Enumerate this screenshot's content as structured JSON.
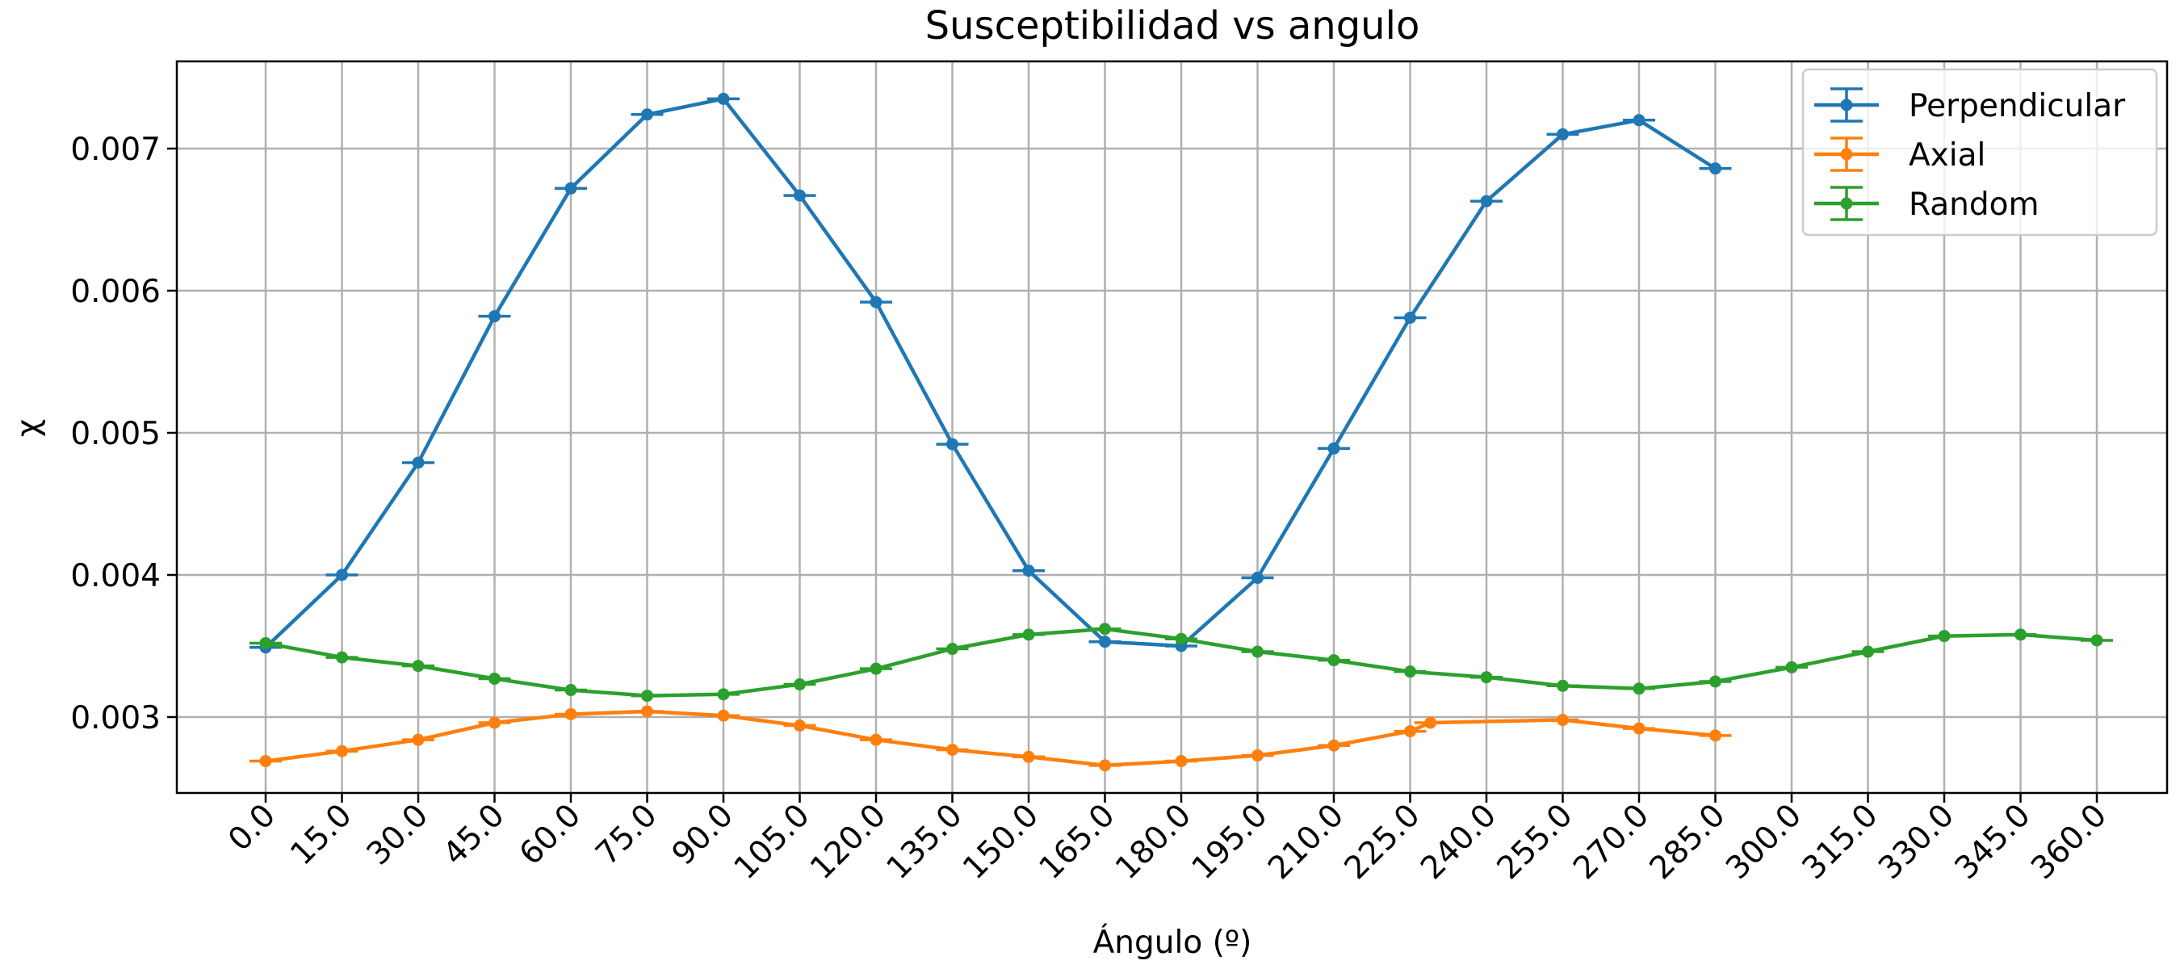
{
  "chart_data": {
    "type": "line",
    "title": "Susceptibilidad vs angulo",
    "xlabel": "Ángulo (º)",
    "ylabel": "χ",
    "x_tick_labels": [
      "0.0",
      "15.0",
      "30.0",
      "45.0",
      "60.0",
      "75.0",
      "90.0",
      "105.0",
      "120.0",
      "135.0",
      "150.0",
      "165.0",
      "180.0",
      "195.0",
      "210.0",
      "225.0",
      "240.0",
      "255.0",
      "270.0",
      "285.0",
      "300.0",
      "315.0",
      "330.0",
      "345.0",
      "360.0"
    ],
    "y_ticks": [
      0.003,
      0.004,
      0.005,
      0.006,
      0.007
    ],
    "y_tick_labels": [
      "0.003",
      "0.004",
      "0.005",
      "0.006",
      "0.007"
    ],
    "xlim": [
      -17.3,
      377.3
    ],
    "ylim": [
      0.00243,
      0.00759
    ],
    "grid": true,
    "legend_position": "top-right",
    "series": [
      {
        "name": "Perpendicular",
        "color": "#1f77b4",
        "x": [
          0,
          15,
          30,
          45,
          60,
          75,
          90,
          105,
          120,
          135,
          150,
          165,
          180,
          195,
          210,
          225,
          240,
          255,
          270,
          285
        ],
        "y": [
          0.00349,
          0.004,
          0.00479,
          0.00582,
          0.00672,
          0.00724,
          0.00735,
          0.00667,
          0.00592,
          0.00492,
          0.00403,
          0.00353,
          0.0035,
          0.00398,
          0.00489,
          0.00581,
          0.00663,
          0.0071,
          0.0072,
          0.00686
        ]
      },
      {
        "name": "Axial",
        "color": "#ff7f0e",
        "x": [
          0,
          15,
          30,
          45,
          60,
          75,
          90,
          105,
          120,
          135,
          150,
          165,
          180,
          195,
          210,
          225,
          229,
          255,
          270,
          285
        ],
        "y": [
          0.00269,
          0.00276,
          0.00284,
          0.00296,
          0.00302,
          0.00304,
          0.00301,
          0.00294,
          0.00284,
          0.00277,
          0.00272,
          0.00266,
          0.00269,
          0.00273,
          0.0028,
          0.0029,
          0.00296,
          0.00298,
          0.00292,
          0.00287
        ]
      },
      {
        "name": "Random",
        "color": "#2ca02c",
        "x": [
          0,
          15,
          30,
          45,
          60,
          75,
          90,
          105,
          120,
          135,
          150,
          165,
          180,
          195,
          210,
          225,
          240,
          255,
          270,
          285,
          300,
          315,
          330,
          345,
          360
        ],
        "y": [
          0.00352,
          0.00342,
          0.00336,
          0.00327,
          0.00319,
          0.00315,
          0.00316,
          0.00323,
          0.00334,
          0.00348,
          0.00358,
          0.00362,
          0.00355,
          0.00346,
          0.0034,
          0.00332,
          0.00328,
          0.00322,
          0.0032,
          0.00325,
          0.00335,
          0.00346,
          0.00357,
          0.00358,
          0.00354
        ]
      }
    ]
  }
}
